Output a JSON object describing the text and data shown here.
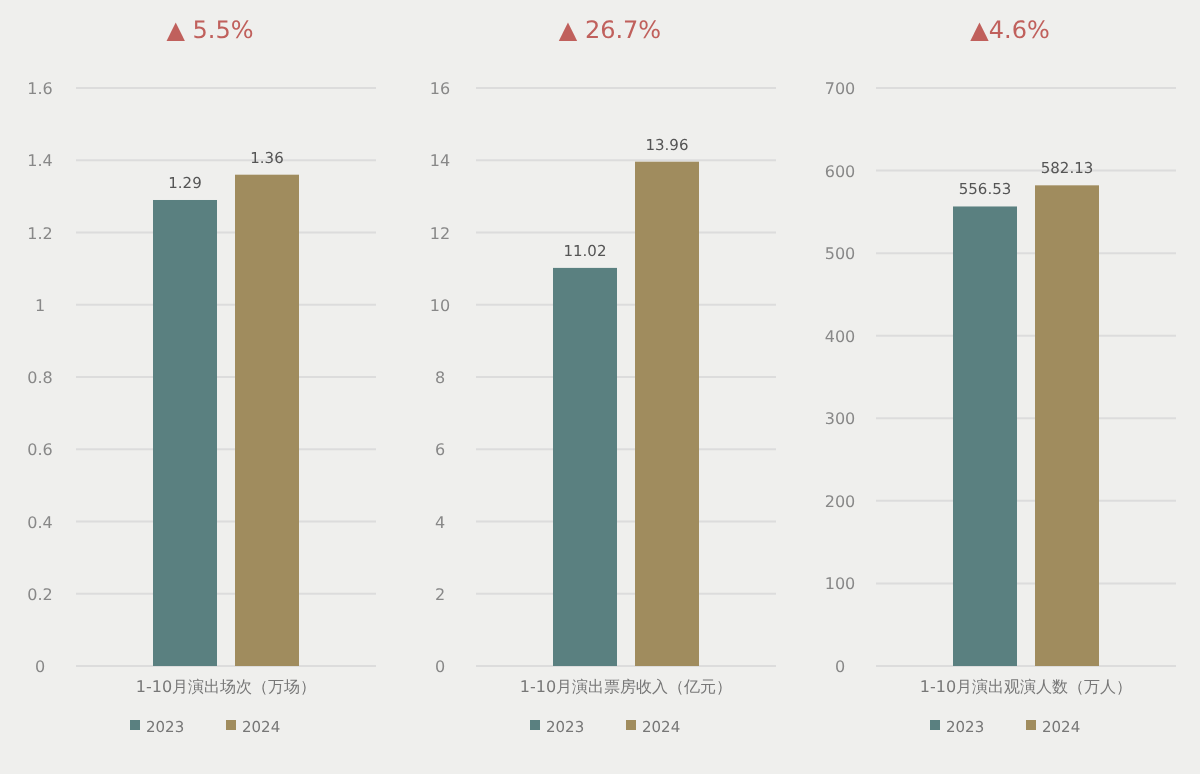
{
  "chart_data": [
    {
      "type": "bar",
      "title": "▲ 5.5%",
      "categories": [
        "1-10月演出场次（万场）"
      ],
      "series": [
        {
          "name": "2023",
          "color": "#5a8080",
          "values": [
            1.29
          ]
        },
        {
          "name": "2024",
          "color": "#a08c5e",
          "values": [
            1.36
          ]
        }
      ],
      "ylim": [
        0,
        1.6
      ],
      "yticks": [
        0,
        0.2,
        0.4,
        0.6,
        0.8,
        1,
        1.2,
        1.4,
        1.6
      ],
      "grid": "y",
      "data_labels": true,
      "legend": "bottom"
    },
    {
      "type": "bar",
      "title": "▲ 26.7%",
      "categories": [
        "1-10月演出票房收入（亿元）"
      ],
      "series": [
        {
          "name": "2023",
          "color": "#5a8080",
          "values": [
            11.02
          ]
        },
        {
          "name": "2024",
          "color": "#a08c5e",
          "values": [
            13.96
          ]
        }
      ],
      "ylim": [
        0,
        16
      ],
      "yticks": [
        0,
        2,
        4,
        6,
        8,
        10,
        12,
        14,
        16
      ],
      "grid": "y",
      "data_labels": true,
      "legend": "bottom"
    },
    {
      "type": "bar",
      "title": "▲4.6%",
      "categories": [
        "1-10月演出观演人数（万人）"
      ],
      "series": [
        {
          "name": "2023",
          "color": "#5a8080",
          "values": [
            556.53
          ]
        },
        {
          "name": "2024",
          "color": "#a08c5e",
          "values": [
            582.13
          ]
        }
      ],
      "ylim": [
        0,
        700
      ],
      "yticks": [
        0,
        100,
        200,
        300,
        400,
        500,
        600,
        700
      ],
      "grid": "y",
      "data_labels": true,
      "legend": "bottom"
    }
  ]
}
